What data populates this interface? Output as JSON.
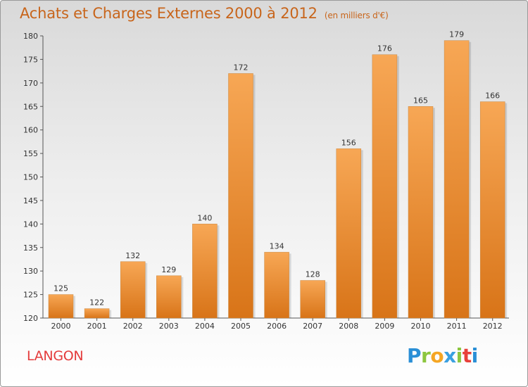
{
  "title": "Achats et Charges Externes 2000 à 2012",
  "subtitle": "(en milliers d'€)",
  "location": "LANGON",
  "logo": {
    "letters": [
      "P",
      "r",
      "o",
      "x",
      "i",
      "t",
      "i"
    ],
    "colors": [
      "#2a8fd6",
      "#8cc63f",
      "#f5a623",
      "#3aa0e0",
      "#8cc63f",
      "#e8403a",
      "#2a8fd6"
    ]
  },
  "colors": {
    "bar_light": "#f7a755",
    "bar_dark": "#d87418",
    "title": "#c8651b",
    "location": "#e43b3b"
  },
  "chart_data": {
    "type": "bar",
    "categories": [
      "2000",
      "2001",
      "2002",
      "2003",
      "2004",
      "2005",
      "2006",
      "2007",
      "2008",
      "2009",
      "2010",
      "2011",
      "2012"
    ],
    "values": [
      125,
      122,
      132,
      129,
      140,
      172,
      134,
      128,
      156,
      176,
      165,
      179,
      166
    ],
    "ylim": [
      120,
      180
    ],
    "yticks": [
      120,
      125,
      130,
      135,
      140,
      145,
      150,
      155,
      160,
      165,
      170,
      175,
      180
    ],
    "grid": false,
    "legend": "none"
  }
}
